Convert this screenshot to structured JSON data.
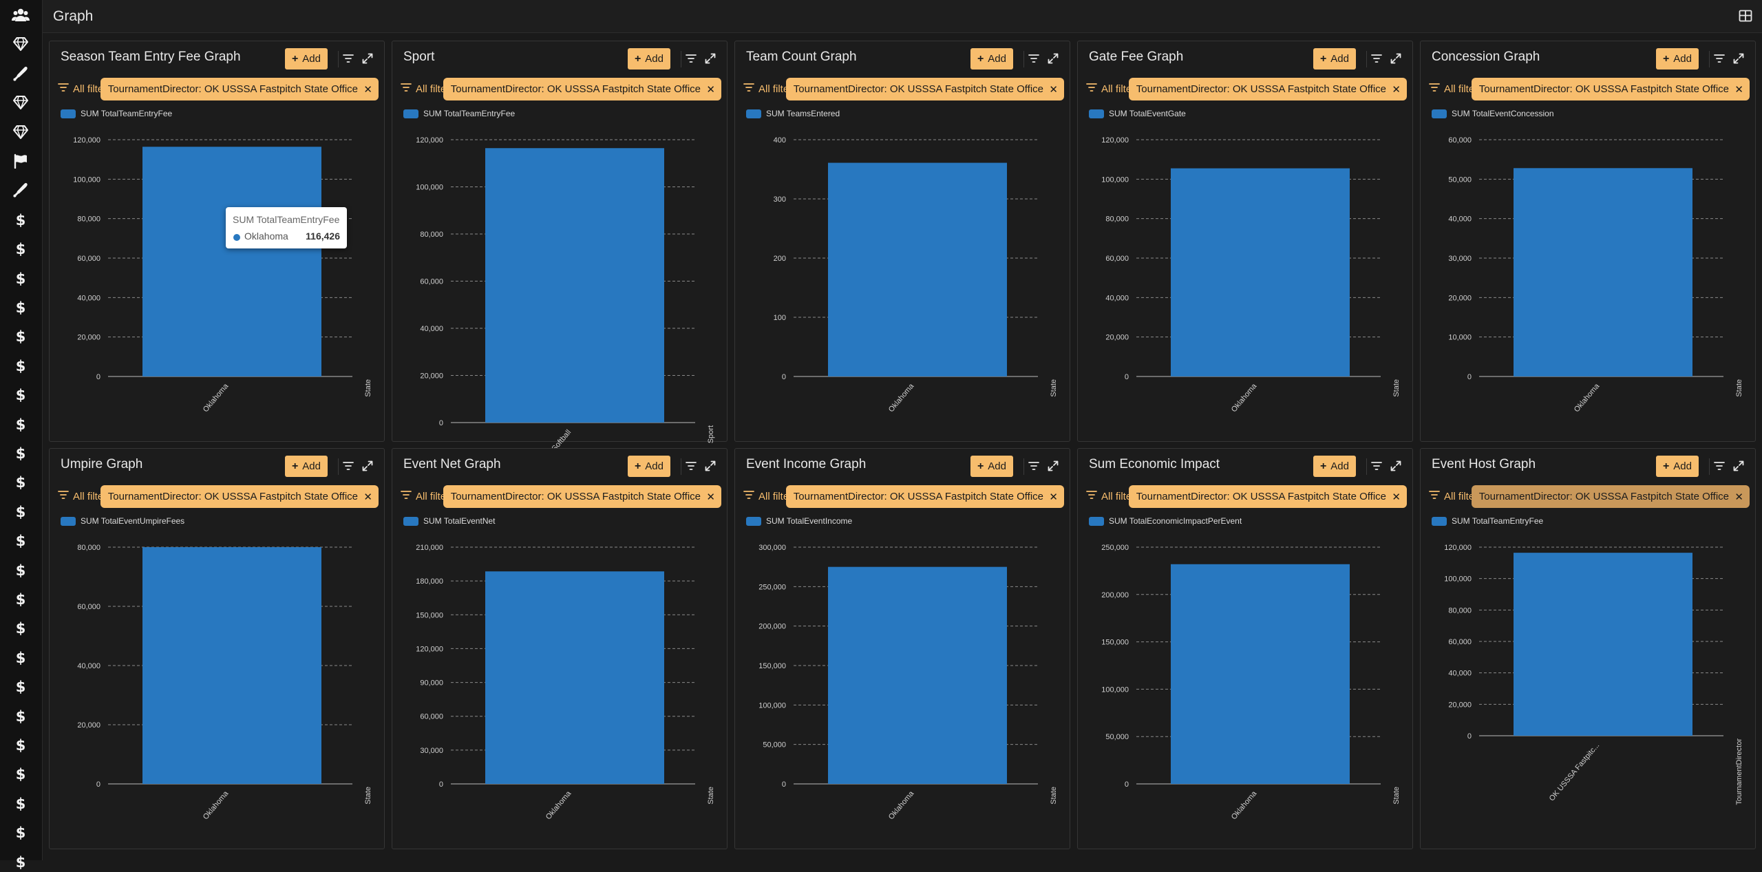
{
  "page": {
    "title": "Graph"
  },
  "sidebar": {
    "icons": [
      "users-icon",
      "diamond-icon",
      "baseball-bat-icon",
      "diamond-icon",
      "diamond-icon",
      "flag-icon",
      "baseball-bat-icon",
      "dollar-icon",
      "dollar-icon",
      "dollar-icon",
      "dollar-icon",
      "dollar-icon",
      "dollar-icon",
      "dollar-icon",
      "dollar-icon",
      "dollar-icon",
      "dollar-icon",
      "dollar-icon",
      "dollar-icon",
      "dollar-icon",
      "dollar-icon",
      "dollar-icon",
      "dollar-icon",
      "dollar-icon",
      "dollar-icon",
      "dollar-icon",
      "dollar-icon",
      "dollar-icon",
      "dollar-icon",
      "dollar-icon"
    ]
  },
  "common": {
    "add_label": "Add",
    "all_filters_label": "All filters"
  },
  "colors": {
    "accent": "#f7bd6d",
    "bar": "#2878c0",
    "background": "#1a1a1a",
    "panel": "#1c1c1c"
  },
  "tooltip": {
    "series": "SUM TotalTeamEntryFee",
    "category": "Oklahoma",
    "value": "116,426"
  },
  "panels": [
    {
      "title": "Season Team Entry Fee Graph",
      "filter": "TournamentDirector: OK USSSA Fastpitch State Office",
      "chart_data": {
        "type": "bar",
        "categories": [
          "Oklahoma"
        ],
        "series": [
          {
            "name": "SUM TotalTeamEntryFee",
            "values": [
              116426
            ]
          }
        ],
        "yticks": [
          "0",
          "20,000",
          "40,000",
          "60,000",
          "80,000",
          "100,000",
          "120,000"
        ],
        "ylim": [
          0,
          120000
        ],
        "xlabel": "State",
        "grid": true,
        "legend": "top-left"
      }
    },
    {
      "title": "Sport",
      "filter": "TournamentDirector: OK USSSA Fastpitch State Office",
      "chart_data": {
        "type": "bar",
        "categories": [
          "Softball"
        ],
        "series": [
          {
            "name": "SUM TotalTeamEntryFee",
            "values": [
              116426
            ]
          }
        ],
        "yticks": [
          "0",
          "20,000",
          "40,000",
          "60,000",
          "80,000",
          "100,000",
          "120,000"
        ],
        "ylim": [
          0,
          120000
        ],
        "xlabel": "Sport",
        "grid": true,
        "legend": "top-left"
      }
    },
    {
      "title": "Team Count Graph",
      "filter": "TournamentDirector: OK USSSA Fastpitch State Office",
      "chart_data": {
        "type": "bar",
        "categories": [
          "Oklahoma"
        ],
        "series": [
          {
            "name": "SUM TeamsEntered",
            "values": [
              361
            ]
          }
        ],
        "yticks": [
          "0",
          "100",
          "200",
          "300",
          "400"
        ],
        "ylim": [
          0,
          400
        ],
        "xlabel": "State",
        "grid": true,
        "legend": "top-left"
      }
    },
    {
      "title": "Gate Fee Graph",
      "filter": "TournamentDirector: OK USSSA Fastpitch State Office",
      "chart_data": {
        "type": "bar",
        "categories": [
          "Oklahoma"
        ],
        "series": [
          {
            "name": "SUM TotalEventGate",
            "values": [
              105500
            ]
          }
        ],
        "yticks": [
          "0",
          "20,000",
          "40,000",
          "60,000",
          "80,000",
          "100,000",
          "120,000"
        ],
        "ylim": [
          0,
          120000
        ],
        "xlabel": "State",
        "grid": true,
        "legend": "top-left"
      }
    },
    {
      "title": "Concession Graph",
      "filter": "TournamentDirector: OK USSSA Fastpitch State Office",
      "chart_data": {
        "type": "bar",
        "categories": [
          "Oklahoma"
        ],
        "series": [
          {
            "name": "SUM TotalEventConcession",
            "values": [
              52800
            ]
          }
        ],
        "yticks": [
          "0",
          "10,000",
          "20,000",
          "30,000",
          "40,000",
          "50,000",
          "60,000"
        ],
        "ylim": [
          0,
          60000
        ],
        "xlabel": "State",
        "grid": true,
        "legend": "top-left"
      }
    },
    {
      "title": "Umpire Graph",
      "filter": "TournamentDirector: OK USSSA Fastpitch State Office",
      "chart_data": {
        "type": "bar",
        "categories": [
          "Oklahoma"
        ],
        "series": [
          {
            "name": "SUM TotalEventUmpireFees",
            "values": [
              80000
            ]
          }
        ],
        "yticks": [
          "0",
          "20,000",
          "40,000",
          "60,000",
          "80,000"
        ],
        "ylim": [
          0,
          80000
        ],
        "xlabel": "State",
        "grid": true,
        "legend": "top-left"
      }
    },
    {
      "title": "Event Net Graph",
      "filter": "TournamentDirector: OK USSSA Fastpitch State Office",
      "chart_data": {
        "type": "bar",
        "categories": [
          "Oklahoma"
        ],
        "series": [
          {
            "name": "SUM TotalEventNet",
            "values": [
              188500
            ]
          }
        ],
        "yticks": [
          "0",
          "30,000",
          "60,000",
          "90,000",
          "120,000",
          "150,000",
          "180,000",
          "210,000"
        ],
        "ylim": [
          0,
          210000
        ],
        "xlabel": "State",
        "grid": true,
        "legend": "top-left"
      }
    },
    {
      "title": "Event Income Graph",
      "filter": "TournamentDirector: OK USSSA Fastpitch State Office",
      "chart_data": {
        "type": "bar",
        "categories": [
          "Oklahoma"
        ],
        "series": [
          {
            "name": "SUM TotalEventIncome",
            "values": [
              275000
            ]
          }
        ],
        "yticks": [
          "0",
          "50,000",
          "100,000",
          "150,000",
          "200,000",
          "250,000",
          "300,000"
        ],
        "ylim": [
          0,
          300000
        ],
        "xlabel": "State",
        "grid": true,
        "legend": "top-left"
      }
    },
    {
      "title": "Sum Economic Impact",
      "filter": "TournamentDirector: OK USSSA Fastpitch State Office",
      "chart_data": {
        "type": "bar",
        "categories": [
          "Oklahoma"
        ],
        "series": [
          {
            "name": "SUM TotalEconomicImpactPerEvent",
            "values": [
              232000
            ]
          }
        ],
        "yticks": [
          "0",
          "50,000",
          "100,000",
          "150,000",
          "200,000",
          "250,000"
        ],
        "ylim": [
          0,
          250000
        ],
        "xlabel": "State",
        "grid": true,
        "legend": "top-left"
      }
    },
    {
      "title": "Event Host Graph",
      "filter": "TournamentDirector: OK USSSA Fastpitch State Office",
      "chart_data": {
        "type": "bar",
        "categories": [
          "OK USSSA Fastpitc..."
        ],
        "series": [
          {
            "name": "SUM TotalTeamEntryFee",
            "values": [
              116426
            ]
          }
        ],
        "yticks": [
          "0",
          "20,000",
          "40,000",
          "60,000",
          "80,000",
          "100,000",
          "120,000"
        ],
        "ylim": [
          0,
          120000
        ],
        "xlabel": "TournamentDirector",
        "grid": true,
        "legend": "top-left"
      }
    }
  ]
}
